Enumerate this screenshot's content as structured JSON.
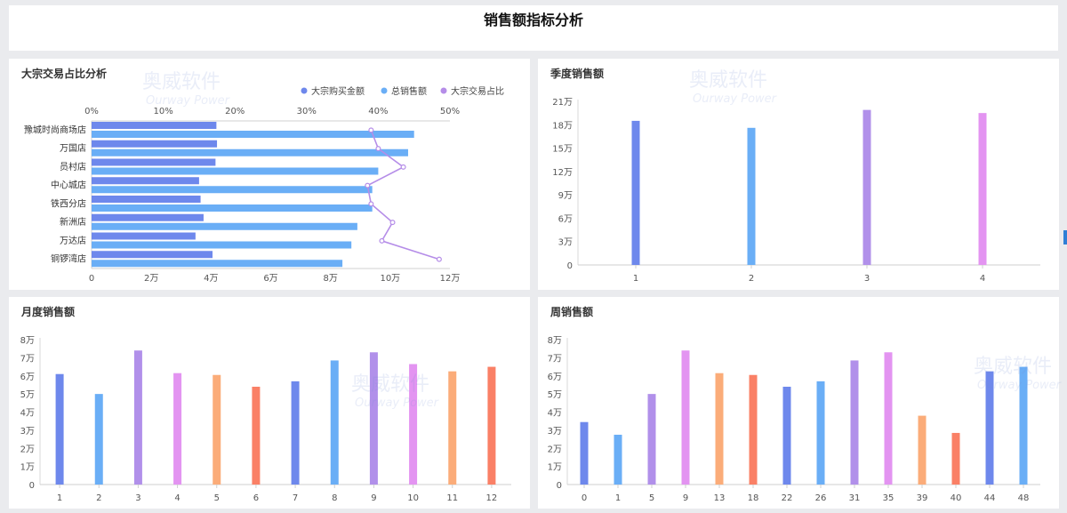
{
  "page": {
    "title": "销售额指标分析"
  },
  "watermark": {
    "cn": "奥威软件",
    "en": "Ourway Power"
  },
  "charts": [
    {
      "title": "大宗交易占比分析",
      "type": "bar",
      "orientation": "horizontal",
      "categories": [
        "豫城时尚商场店",
        "万国店",
        "员村店",
        "中心城店",
        "铁西分店",
        "新洲店",
        "万达店",
        "铜锣湾店"
      ],
      "series": [
        {
          "name": "大宗购买金额",
          "color": "#6e88ec",
          "values": [
            41800,
            42000,
            41500,
            36000,
            36500,
            37500,
            34800,
            40500
          ]
        },
        {
          "name": "总销售额",
          "color": "#6aaef6",
          "values": [
            108000,
            106000,
            96000,
            94000,
            94000,
            89000,
            87000,
            84000
          ]
        },
        {
          "name": "大宗交易占比",
          "color": "#b58de8",
          "type": "line",
          "axis": "percent",
          "values": [
            39,
            40,
            43.5,
            38.5,
            39,
            42,
            40.5,
            48.5
          ]
        }
      ],
      "x_ticks": [
        "0",
        "2万",
        "4万",
        "6万",
        "8万",
        "10万",
        "12万"
      ],
      "x_max": 120000,
      "percent_ticks": [
        "0%",
        "10%",
        "20%",
        "30%",
        "40%",
        "50%"
      ],
      "percent_max": 50,
      "legend_position": "top-right",
      "grid": false
    },
    {
      "title": "季度销售额",
      "type": "bar",
      "categories": [
        "1",
        "2",
        "3",
        "4"
      ],
      "values": [
        185000,
        176000,
        199000,
        195000
      ],
      "colors": [
        "#6e88ec",
        "#6aaef6",
        "#b190ea",
        "#e394f1"
      ],
      "y_ticks": [
        "0",
        "3万",
        "6万",
        "9万",
        "12万",
        "15万",
        "18万",
        "21万"
      ],
      "ylim": [
        0,
        210000
      ],
      "grid": false
    },
    {
      "title": "月度销售额",
      "type": "bar",
      "categories": [
        "1",
        "2",
        "3",
        "4",
        "5",
        "6",
        "7",
        "8",
        "9",
        "10",
        "11",
        "12"
      ],
      "values": [
        61000,
        50000,
        74000,
        61500,
        60500,
        54000,
        57000,
        68500,
        73000,
        66500,
        62500,
        65000
      ],
      "colors": [
        "#6e88ec",
        "#6aaef6",
        "#b190ea",
        "#e394f1",
        "#fbac79",
        "#fa8066",
        "#6e88ec",
        "#6aaef6",
        "#b190ea",
        "#e394f1",
        "#fbac79",
        "#fa8066"
      ],
      "y_ticks": [
        "0",
        "1万",
        "2万",
        "3万",
        "4万",
        "5万",
        "6万",
        "7万",
        "8万"
      ],
      "ylim": [
        0,
        80000
      ],
      "grid": false
    },
    {
      "title": "周销售额",
      "type": "bar",
      "categories": [
        "0",
        "1",
        "5",
        "9",
        "13",
        "18",
        "22",
        "26",
        "31",
        "35",
        "39",
        "40",
        "44",
        "48"
      ],
      "values": [
        34500,
        27500,
        50000,
        74000,
        61500,
        60500,
        54000,
        57000,
        68500,
        73000,
        38000,
        28500,
        62500,
        65000
      ],
      "colors": [
        "#6e88ec",
        "#6aaef6",
        "#b190ea",
        "#e394f1",
        "#fbac79",
        "#fa8066",
        "#6e88ec",
        "#6aaef6",
        "#b190ea",
        "#e394f1",
        "#fbac79",
        "#fa8066",
        "#6e88ec",
        "#6aaef6"
      ],
      "y_ticks": [
        "0",
        "1万",
        "2万",
        "3万",
        "4万",
        "5万",
        "6万",
        "7万",
        "8万"
      ],
      "ylim": [
        0,
        80000
      ],
      "grid": false
    }
  ]
}
